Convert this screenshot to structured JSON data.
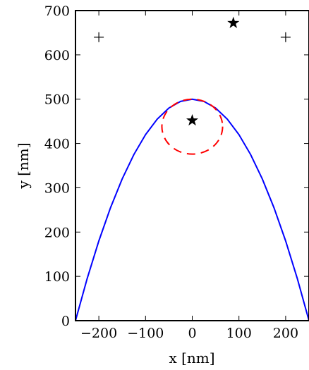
{
  "chart_data": {
    "type": "line",
    "title": "",
    "xlabel": "x [nm]",
    "ylabel": "y [nm]",
    "xlim": [
      -250,
      250
    ],
    "ylim": [
      0,
      700
    ],
    "xticks": [
      -200,
      -100,
      0,
      100,
      200
    ],
    "xtick_labels": [
      "−200",
      "−100",
      "0",
      "100",
      "200"
    ],
    "yticks": [
      0,
      100,
      200,
      300,
      400,
      500,
      600,
      700
    ],
    "ytick_labels": [
      "0",
      "100",
      "200",
      "300",
      "400",
      "500",
      "600",
      "700"
    ],
    "grid": false,
    "series": [
      {
        "kind": "line",
        "color": "#0000ff",
        "style": "solid",
        "x": [
          -250,
          -225,
          -200,
          -175,
          -150,
          -125,
          -100,
          -75,
          -50,
          -25,
          0,
          25,
          50,
          75,
          100,
          125,
          150,
          175,
          200,
          225,
          250
        ],
        "y": [
          0,
          95,
          180,
          255,
          320,
          375,
          420,
          455,
          480,
          495,
          500,
          495,
          480,
          455,
          420,
          375,
          320,
          255,
          180,
          95,
          0
        ]
      },
      {
        "kind": "ellipse",
        "color": "#ff0000",
        "style": "dashed",
        "center": [
          0,
          438
        ],
        "radius_x": 65,
        "radius_y": 62
      },
      {
        "kind": "scatter",
        "marker": "star",
        "color": "#000000",
        "points": [
          [
            0,
            452
          ],
          [
            88,
            672
          ]
        ]
      },
      {
        "kind": "scatter",
        "marker": "plus",
        "color": "#000000",
        "points": [
          [
            -200,
            640
          ],
          [
            200,
            640
          ]
        ]
      }
    ]
  }
}
